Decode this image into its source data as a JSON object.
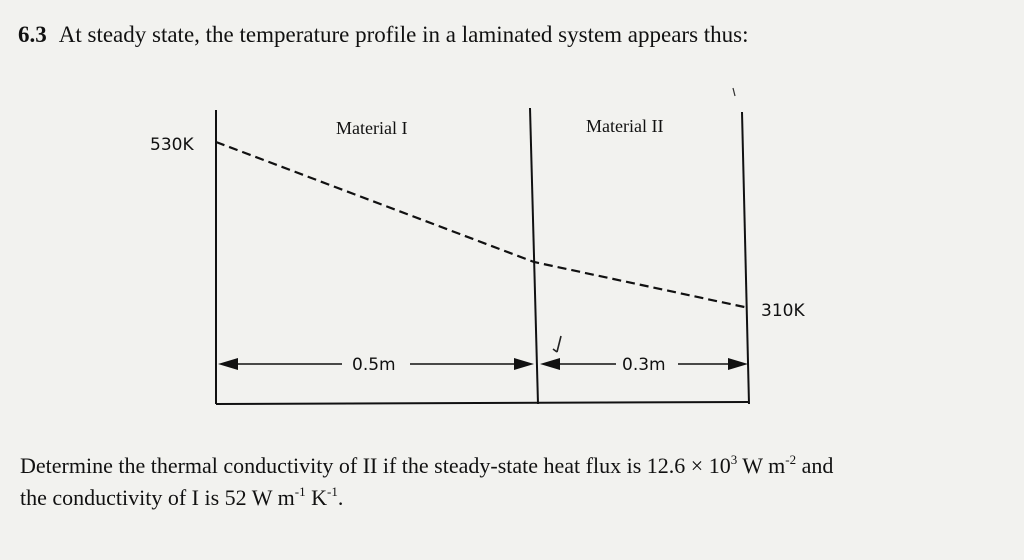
{
  "question": {
    "number": "6.3",
    "header": "At steady state, the temperature profile in a laminated system appears thus:",
    "body_line1": {
      "text": "Determine the thermal conductivity of II if the steady-state heat flux is 12.6 × 10",
      "exp1": "3",
      "unit": " W m",
      "exp2": "-2",
      "tail": " and"
    },
    "body_line2": {
      "text": "the conductivity of I is 52 W m",
      "exp1": "-1",
      "mid": " K",
      "exp2": "-1",
      "tail": "."
    }
  },
  "figure": {
    "materials": [
      {
        "label": "Material I",
        "thickness_label": "0.5m"
      },
      {
        "label": "Material II",
        "thickness_label": "0.3m"
      }
    ],
    "temperature_left": "530K",
    "temperature_right": "310K"
  }
}
